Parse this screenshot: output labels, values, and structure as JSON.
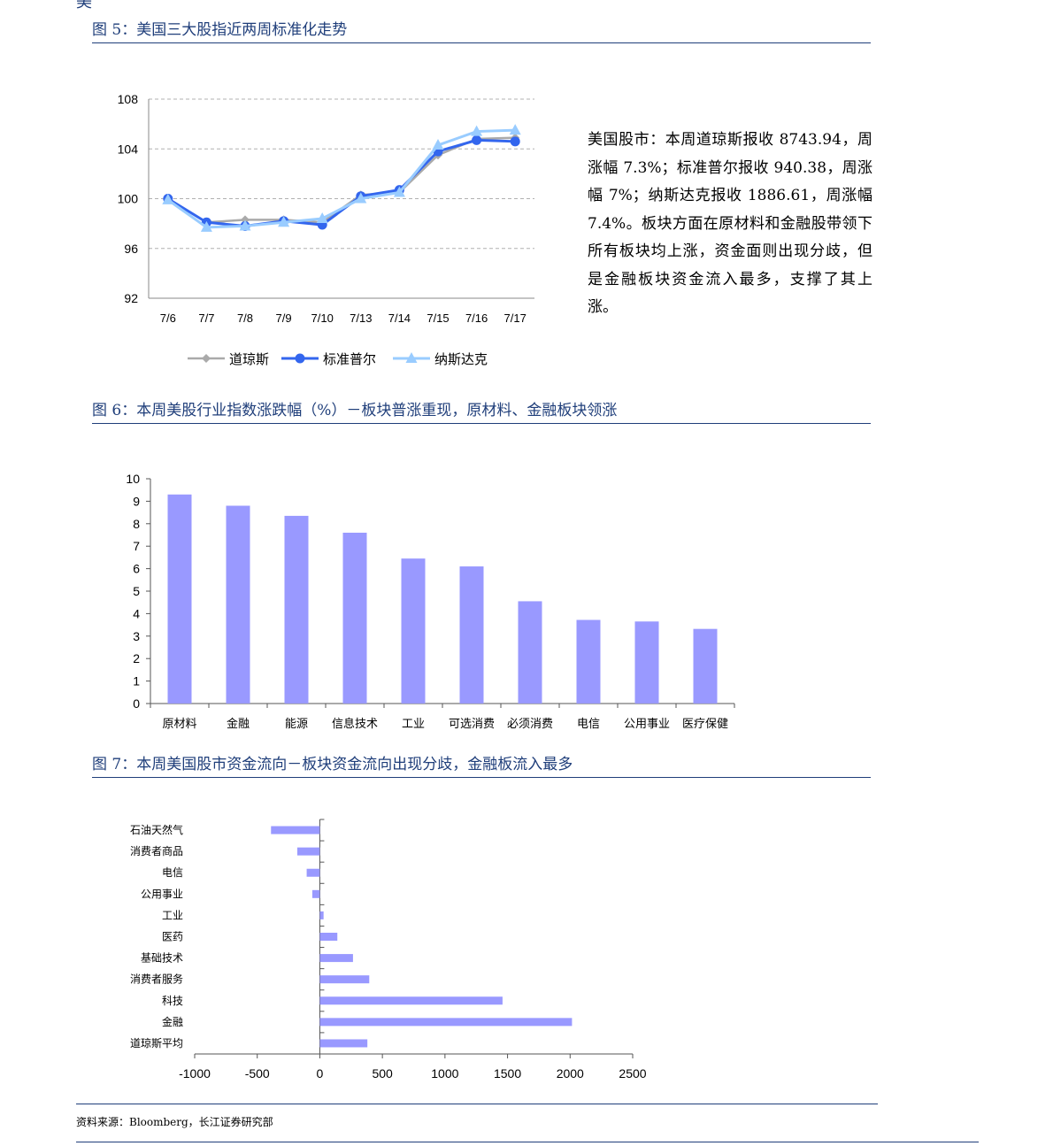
{
  "top_cut_text": "美",
  "figures": {
    "fig5": {
      "title": "图 5：美国三大股指近两周标准化走势"
    },
    "fig6": {
      "title": "图 6：本周美股行业指数涨跌幅（%）－板块普涨重现，原材料、金融板块领涨"
    },
    "fig7": {
      "title": "图 7：本周美国股市资金流向－板块资金流向出现分歧，金融板流入最多"
    }
  },
  "description": "美国股市：本周道琼斯报收 8743.94，周涨幅 7.3%；标准普尔报收 940.38，周涨幅 7%；纳斯达克报收 1886.61，周涨幅 7.4%。板块方面在原材料和金融股带领下所有板块均上涨，资金面则出现分歧，但是金融板块资金流入最多，支撑了其上涨。",
  "source": "资料来源：Bloomberg，长江证券研究部",
  "colors": {
    "accent": "#1f3e7a",
    "bar": "#9999ff",
    "dow": "#aaaaaa",
    "sp": "#3366ee",
    "nasdaq": "#99ccff",
    "grid": "#b0b0b0"
  },
  "chart_data": [
    {
      "type": "line",
      "title": "",
      "categories": [
        "7/6",
        "7/7",
        "7/8",
        "7/9",
        "7/10",
        "7/13",
        "7/14",
        "7/15",
        "7/16",
        "7/17"
      ],
      "yticks": [
        "92",
        "96",
        "100",
        "104",
        "108"
      ],
      "ylim": [
        92,
        108
      ],
      "grid": true,
      "legend": "bottom",
      "series": [
        {
          "name": "道琼斯",
          "marker": "diamond",
          "values": [
            100,
            98.1,
            98.3,
            98.3,
            98.1,
            100.3,
            100.5,
            103.5,
            104.8,
            104.9
          ]
        },
        {
          "name": "标准普尔",
          "marker": "circle",
          "values": [
            100,
            98.1,
            97.8,
            98.2,
            97.9,
            100.2,
            100.7,
            103.8,
            104.7,
            104.6
          ]
        },
        {
          "name": "纳斯达克",
          "marker": "triangle",
          "values": [
            99.9,
            97.7,
            97.8,
            98.1,
            98.4,
            100.0,
            100.5,
            104.3,
            105.4,
            105.5
          ]
        }
      ]
    },
    {
      "type": "bar",
      "title": "",
      "categories": [
        "原材料",
        "金融",
        "能源",
        "信息技术",
        "工业",
        "可选消费",
        "必须消费",
        "电信",
        "公用事业",
        "医疗保健"
      ],
      "values": [
        9.3,
        8.8,
        8.35,
        7.6,
        6.45,
        6.1,
        4.55,
        3.72,
        3.65,
        3.32
      ],
      "yticks": [
        "0",
        "1",
        "2",
        "3",
        "4",
        "5",
        "6",
        "7",
        "8",
        "9",
        "10"
      ],
      "ylim": [
        0,
        10
      ],
      "grid": false
    },
    {
      "type": "bar",
      "orientation": "horizontal",
      "title": "",
      "categories": [
        "石油天然气",
        "消费者商品",
        "电信",
        "公用事业",
        "工业",
        "医药",
        "基础技术",
        "消费者服务",
        "科技",
        "金融",
        "道琼斯平均"
      ],
      "values": [
        -390,
        -180,
        -105,
        -60,
        30,
        140,
        265,
        395,
        1460,
        2015,
        380
      ],
      "xticks": [
        "-1000",
        "-500",
        "0",
        "500",
        "1000",
        "1500",
        "2000",
        "2500"
      ],
      "xlim": [
        -1000,
        2500
      ],
      "grid": false
    }
  ]
}
